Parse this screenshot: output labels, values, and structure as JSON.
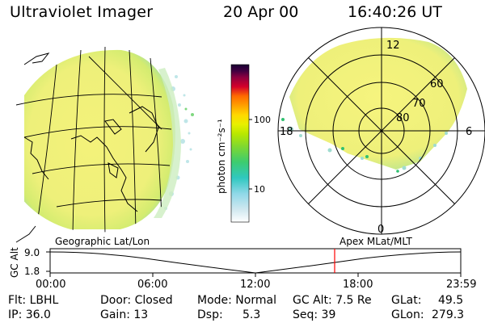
{
  "header": {
    "title": "Ultraviolet Imager",
    "date": "20 Apr 00",
    "time": "16:40:26 UT"
  },
  "left_panel": {
    "label": "Geographic Lat/Lon"
  },
  "colorbar": {
    "unit_label": "photon cm⁻²s⁻¹",
    "ticks": [
      "100",
      "10"
    ],
    "colors": [
      "#1a0033",
      "#400040",
      "#8b0040",
      "#d4002a",
      "#ff6a00",
      "#ffa000",
      "#ffd800",
      "#e8f000",
      "#b8e800",
      "#7fd830",
      "#3ccc70",
      "#30c8c0",
      "#90d8e8",
      "#d0e8f0",
      "#ffffff"
    ]
  },
  "polar_plot": {
    "label": "Apex MLat/MLT",
    "mlt_labels": [
      "12",
      "18",
      "6",
      "0"
    ],
    "mlat_labels": [
      "60",
      "70",
      "80"
    ]
  },
  "timeline": {
    "ylabel": "GC Alt",
    "y_ticks": [
      "9.0",
      "1.8"
    ],
    "x_ticks": [
      "00:00",
      "06:00",
      "12:00",
      "18:00",
      "23:59"
    ],
    "marker_time": "16:40"
  },
  "info": {
    "flt": "Flt: LBHL",
    "ip": "IP: 36.0",
    "door": "Door: Closed",
    "gain": "Gain: 13",
    "mode": "Mode: Normal",
    "dsp_label": "Dsp:",
    "dsp_value": "5.3",
    "gcalt": "GC Alt: 7.5 Re",
    "seq": "Seq: 39",
    "glat_label": "GLat:",
    "glat_value": "49.5",
    "glon_label": "GLon:",
    "glon_value": "279.3"
  },
  "colors": {
    "background": "#ffffff",
    "marker": "#ff0000",
    "aurora_main": "#f0f070",
    "aurora_edge": "#b8e890"
  }
}
